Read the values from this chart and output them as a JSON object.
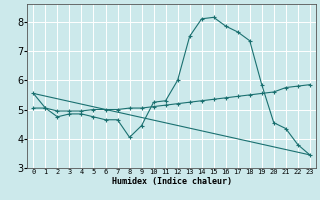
{
  "xlabel": "Humidex (Indice chaleur)",
  "ylabel": "",
  "background_color": "#cce9eb",
  "grid_color": "#ffffff",
  "line_color": "#1a7070",
  "xlim": [
    -0.5,
    23.5
  ],
  "ylim": [
    3.0,
    8.6
  ],
  "yticks": [
    3,
    4,
    5,
    6,
    7,
    8
  ],
  "xticks": [
    0,
    1,
    2,
    3,
    4,
    5,
    6,
    7,
    8,
    9,
    10,
    11,
    12,
    13,
    14,
    15,
    16,
    17,
    18,
    19,
    20,
    21,
    22,
    23
  ],
  "line1_x": [
    0,
    1,
    2,
    3,
    4,
    5,
    6,
    7,
    8,
    9,
    10,
    11,
    12,
    13,
    14,
    15,
    16,
    17,
    18,
    19,
    20,
    21,
    22,
    23
  ],
  "line1_y": [
    5.55,
    5.05,
    4.75,
    4.85,
    4.85,
    4.75,
    4.65,
    4.65,
    4.05,
    4.45,
    5.25,
    5.3,
    6.0,
    7.5,
    8.1,
    8.15,
    7.85,
    7.65,
    7.35,
    5.85,
    4.55,
    4.35,
    3.8,
    3.45
  ],
  "line2_x": [
    0,
    1,
    2,
    3,
    4,
    5,
    6,
    7,
    8,
    9,
    10,
    11,
    12,
    13,
    14,
    15,
    16,
    17,
    18,
    19,
    20,
    21,
    22,
    23
  ],
  "line2_y": [
    5.05,
    5.05,
    4.95,
    4.95,
    4.95,
    5.0,
    5.0,
    5.0,
    5.05,
    5.05,
    5.1,
    5.15,
    5.2,
    5.25,
    5.3,
    5.35,
    5.4,
    5.45,
    5.5,
    5.55,
    5.6,
    5.75,
    5.8,
    5.85
  ],
  "line3_x": [
    0,
    23
  ],
  "line3_y": [
    5.55,
    3.45
  ],
  "xtick_labels": [
    "0",
    "1",
    "2",
    "3",
    "4",
    "5",
    "6",
    "7",
    "8",
    "9",
    "10",
    "11",
    "12",
    "13",
    "14",
    "15",
    "16",
    "17",
    "18",
    "19",
    "20",
    "21",
    "22",
    "23"
  ]
}
